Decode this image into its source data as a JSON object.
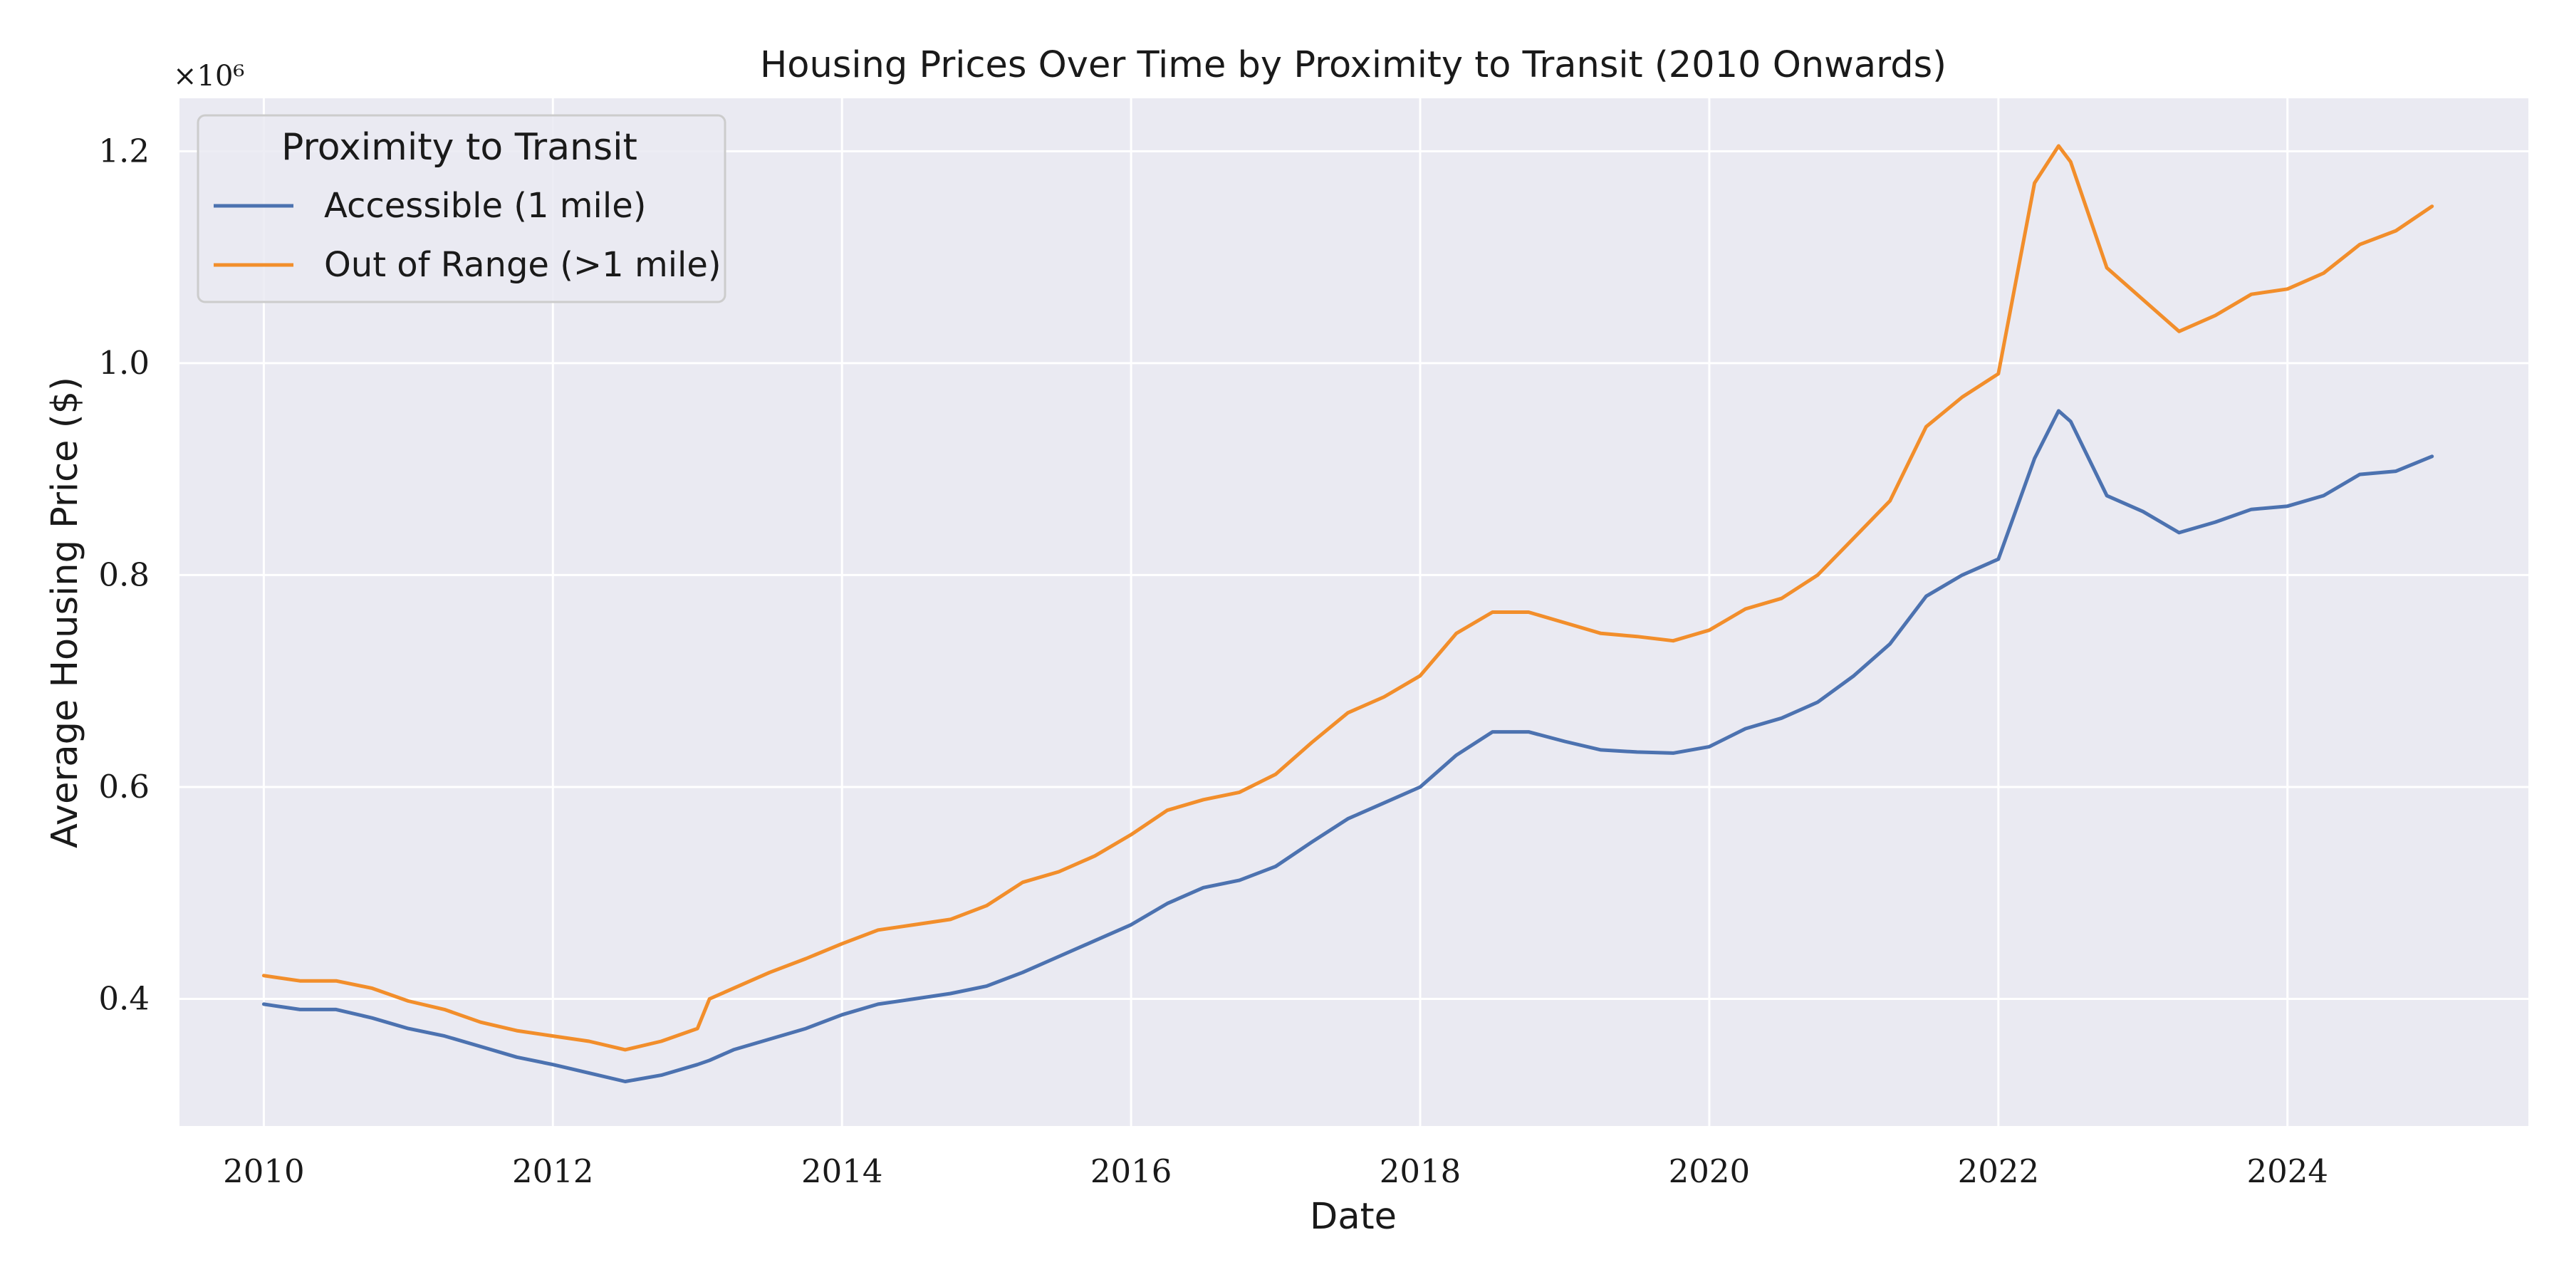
{
  "chart_data": {
    "type": "line",
    "title": "Housing Prices Over Time by Proximity to Transit (2010 Onwards)",
    "xlabel": "Date",
    "ylabel": "Average Housing Price ($)",
    "y_offset_label": "×10⁶",
    "xlim": [
      "2009-06",
      "2025-09"
    ],
    "ylim": [
      0.28,
      1.25
    ],
    "y_scale_factor": 1000000,
    "x_ticks": [
      "2010",
      "2012",
      "2014",
      "2016",
      "2018",
      "2020",
      "2022",
      "2024"
    ],
    "y_ticks": [
      "0.4",
      "0.6",
      "0.8",
      "1.0",
      "1.2"
    ],
    "grid": true,
    "legend": {
      "title": "Proximity to Transit",
      "placement": "top-left"
    },
    "x": [
      "2010-01",
      "2010-04",
      "2010-07",
      "2010-10",
      "2011-01",
      "2011-04",
      "2011-07",
      "2011-10",
      "2012-01",
      "2012-04",
      "2012-07",
      "2012-10",
      "2013-01",
      "2013-02",
      "2013-04",
      "2013-07",
      "2013-10",
      "2014-01",
      "2014-04",
      "2014-07",
      "2014-10",
      "2015-01",
      "2015-04",
      "2015-07",
      "2015-10",
      "2016-01",
      "2016-04",
      "2016-07",
      "2016-10",
      "2017-01",
      "2017-04",
      "2017-07",
      "2017-10",
      "2018-01",
      "2018-04",
      "2018-07",
      "2018-10",
      "2019-01",
      "2019-04",
      "2019-07",
      "2019-10",
      "2020-01",
      "2020-04",
      "2020-07",
      "2020-10",
      "2021-01",
      "2021-04",
      "2021-07",
      "2021-10",
      "2022-01",
      "2022-04",
      "2022-06",
      "2022-07",
      "2022-10",
      "2023-01",
      "2023-04",
      "2023-07",
      "2023-10",
      "2024-01",
      "2024-04",
      "2024-07",
      "2024-10",
      "2025-01"
    ],
    "series": [
      {
        "name": "Accessible (1 mile)",
        "color": "#4c72b0",
        "values": [
          0.395,
          0.39,
          0.39,
          0.382,
          0.372,
          0.365,
          0.355,
          0.345,
          0.338,
          0.33,
          0.322,
          0.328,
          0.338,
          0.342,
          0.352,
          0.362,
          0.372,
          0.385,
          0.395,
          0.4,
          0.405,
          0.412,
          0.425,
          0.44,
          0.455,
          0.47,
          0.49,
          0.505,
          0.512,
          0.525,
          0.548,
          0.57,
          0.585,
          0.6,
          0.63,
          0.652,
          0.652,
          0.643,
          0.635,
          0.633,
          0.632,
          0.638,
          0.655,
          0.665,
          0.68,
          0.705,
          0.735,
          0.78,
          0.8,
          0.815,
          0.91,
          0.955,
          0.945,
          0.875,
          0.86,
          0.84,
          0.85,
          0.862,
          0.865,
          0.875,
          0.895,
          0.898,
          0.912
        ]
      },
      {
        "name": "Out of Range (>1 mile)",
        "color": "#f28e2b",
        "values": [
          0.422,
          0.417,
          0.417,
          0.41,
          0.398,
          0.39,
          0.378,
          0.37,
          0.365,
          0.36,
          0.352,
          0.36,
          0.372,
          0.4,
          0.41,
          0.425,
          0.438,
          0.452,
          0.465,
          0.47,
          0.475,
          0.488,
          0.51,
          0.52,
          0.535,
          0.555,
          0.578,
          0.588,
          0.595,
          0.612,
          0.642,
          0.67,
          0.685,
          0.705,
          0.745,
          0.765,
          0.765,
          0.755,
          0.745,
          0.742,
          0.738,
          0.748,
          0.768,
          0.778,
          0.8,
          0.835,
          0.87,
          0.94,
          0.968,
          0.99,
          1.17,
          1.205,
          1.19,
          1.09,
          1.06,
          1.03,
          1.045,
          1.065,
          1.07,
          1.085,
          1.112,
          1.125,
          1.148
        ]
      }
    ]
  }
}
